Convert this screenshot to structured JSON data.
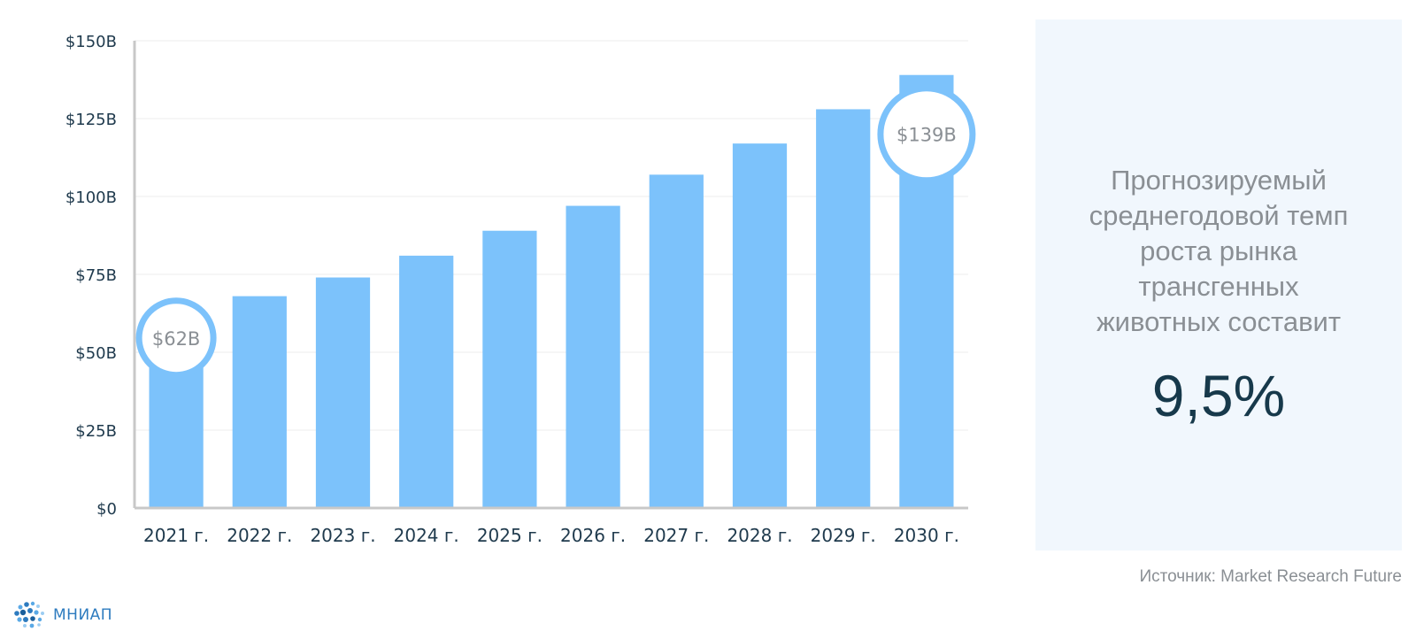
{
  "chart_data": {
    "type": "bar",
    "categories": [
      "2021 г.",
      "2022 г.",
      "2023 г.",
      "2024 г.",
      "2025 г.",
      "2026 г.",
      "2027 г.",
      "2028 г.",
      "2029 г.",
      "2030 г."
    ],
    "values": [
      62,
      68,
      74,
      81,
      89,
      97,
      107,
      117,
      128,
      139
    ],
    "yticks": [
      "$0",
      "$25B",
      "$50B",
      "$75B",
      "$100B",
      "$125B",
      "$150B"
    ],
    "ylim": [
      0,
      150
    ],
    "grid": true,
    "title": "",
    "xlabel": "",
    "ylabel": "",
    "annotations": [
      {
        "category": "2021 г.",
        "label": "$62B"
      },
      {
        "category": "2030 г.",
        "label": "$139B"
      }
    ],
    "colors": {
      "bar": "#7cc2fb",
      "axis": "#c8c8c8",
      "grid": "#ececec",
      "callout_ring": "#7cc2fb"
    }
  },
  "panel": {
    "text_lines": [
      "Прогнозируемый",
      "среднегодовой темп",
      "роста рынка",
      "трансгенных",
      "животных составит"
    ],
    "value": "9,5%",
    "background": "#f1f7fd"
  },
  "source": "Источник: Market Research Future",
  "logo": {
    "icon": "dotted-globe-logo-icon",
    "text": "МНИАП"
  }
}
